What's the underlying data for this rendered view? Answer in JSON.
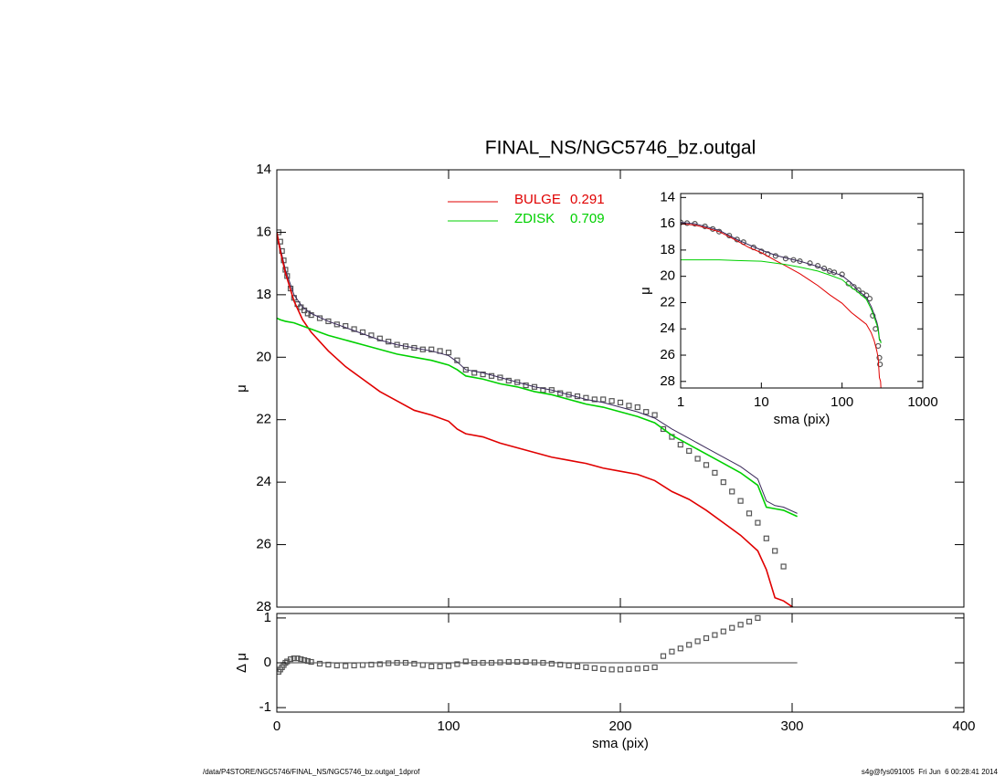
{
  "chart_data": [
    {
      "type": "line",
      "title": "FINAL_NS/NGC5746_bz.outgal",
      "ylabel": "μ",
      "xlim": [
        0,
        400
      ],
      "xticks": [
        0,
        100,
        200,
        300,
        400
      ],
      "xtick_labels": false,
      "ylim": [
        14,
        28
      ],
      "yreverse": true,
      "yticks": [
        14,
        16,
        18,
        20,
        22,
        24,
        26,
        28
      ],
      "legend": "upper-center",
      "series": [
        {
          "mode": "markers",
          "marker": "square",
          "color": "#555555",
          "x": [
            1,
            2,
            3,
            4,
            5,
            6,
            8,
            10,
            12,
            14,
            16,
            18,
            20,
            25,
            30,
            35,
            40,
            45,
            50,
            55,
            60,
            65,
            70,
            75,
            80,
            85,
            90,
            95,
            100,
            105,
            110,
            115,
            120,
            125,
            130,
            135,
            140,
            145,
            150,
            155,
            160,
            165,
            170,
            175,
            180,
            185,
            190,
            195,
            200,
            205,
            210,
            215,
            220,
            225,
            230,
            235,
            240,
            245,
            250,
            255,
            260,
            265,
            270,
            275,
            280,
            285,
            290,
            295
          ],
          "values": [
            16.0,
            16.3,
            16.6,
            16.9,
            17.2,
            17.4,
            17.8,
            18.1,
            18.3,
            18.4,
            18.5,
            18.6,
            18.65,
            18.75,
            18.85,
            18.95,
            19.0,
            19.1,
            19.2,
            19.3,
            19.4,
            19.5,
            19.6,
            19.65,
            19.7,
            19.75,
            19.75,
            19.8,
            19.85,
            20.1,
            20.4,
            20.5,
            20.55,
            20.6,
            20.65,
            20.75,
            20.8,
            20.9,
            20.95,
            21.05,
            21.05,
            21.15,
            21.2,
            21.25,
            21.3,
            21.35,
            21.35,
            21.4,
            21.45,
            21.55,
            21.6,
            21.75,
            21.85,
            22.3,
            22.55,
            22.8,
            23.0,
            23.25,
            23.45,
            23.7,
            24.0,
            24.3,
            24.6,
            25.0,
            25.3,
            25.8,
            26.2,
            26.7
          ]
        },
        {
          "mode": "lines",
          "color": "#3a2a5a",
          "x": [
            0,
            2,
            5,
            10,
            15,
            20,
            30,
            40,
            50,
            60,
            70,
            80,
            90,
            100,
            105,
            110,
            120,
            130,
            140,
            150,
            160,
            170,
            180,
            190,
            200,
            210,
            220,
            230,
            240,
            250,
            260,
            270,
            280,
            285,
            290,
            295,
            303
          ],
          "values": [
            16.0,
            16.5,
            17.2,
            18.0,
            18.4,
            18.6,
            18.85,
            19.05,
            19.25,
            19.45,
            19.6,
            19.7,
            19.8,
            19.95,
            20.15,
            20.4,
            20.5,
            20.65,
            20.8,
            20.95,
            21.05,
            21.2,
            21.35,
            21.45,
            21.6,
            21.75,
            21.95,
            22.3,
            22.6,
            22.9,
            23.2,
            23.5,
            23.9,
            24.6,
            24.75,
            24.8,
            25.0
          ]
        },
        {
          "mode": "lines",
          "name": "BULGE",
          "fraction": 0.291,
          "color": "#e00000",
          "x": [
            0,
            2,
            5,
            10,
            15,
            20,
            30,
            40,
            50,
            60,
            70,
            80,
            90,
            100,
            105,
            110,
            120,
            130,
            140,
            150,
            160,
            170,
            180,
            190,
            200,
            210,
            220,
            230,
            240,
            250,
            260,
            270,
            280,
            285,
            290,
            295,
            303
          ],
          "values": [
            16.0,
            16.6,
            17.3,
            18.2,
            18.8,
            19.2,
            19.8,
            20.3,
            20.7,
            21.1,
            21.4,
            21.7,
            21.85,
            22.05,
            22.3,
            22.45,
            22.55,
            22.75,
            22.9,
            23.05,
            23.2,
            23.3,
            23.4,
            23.55,
            23.65,
            23.75,
            23.95,
            24.3,
            24.55,
            24.9,
            25.3,
            25.7,
            26.2,
            26.8,
            27.7,
            27.8,
            28.1
          ]
        },
        {
          "mode": "lines",
          "name": "ZDISK",
          "fraction": 0.709,
          "color": "#00d000",
          "x": [
            0,
            2,
            5,
            10,
            15,
            20,
            30,
            40,
            50,
            60,
            70,
            80,
            90,
            100,
            105,
            110,
            120,
            130,
            140,
            150,
            160,
            170,
            180,
            190,
            200,
            210,
            220,
            230,
            240,
            250,
            260,
            270,
            280,
            285,
            290,
            295,
            303
          ],
          "values": [
            18.75,
            18.8,
            18.85,
            18.9,
            19.0,
            19.1,
            19.3,
            19.45,
            19.6,
            19.75,
            19.9,
            20.0,
            20.1,
            20.25,
            20.4,
            20.6,
            20.7,
            20.85,
            20.95,
            21.1,
            21.2,
            21.35,
            21.5,
            21.6,
            21.75,
            21.9,
            22.1,
            22.5,
            22.8,
            23.1,
            23.4,
            23.7,
            24.1,
            24.8,
            24.85,
            24.9,
            25.1
          ]
        }
      ]
    },
    {
      "type": "line",
      "xlabel": "sma (pix)",
      "ylabel": "Δ μ",
      "xlim": [
        0,
        400
      ],
      "xticks": [
        0,
        100,
        200,
        300,
        400
      ],
      "ylim": [
        -1.1,
        1.1
      ],
      "yticks": [
        -1,
        0,
        1
      ],
      "hline": 0,
      "hline_x": [
        0,
        303
      ],
      "series": [
        {
          "mode": "markers",
          "marker": "square",
          "color": "#555555",
          "x": [
            1,
            2,
            3,
            4,
            5,
            6,
            8,
            10,
            12,
            14,
            16,
            18,
            20,
            25,
            30,
            35,
            40,
            45,
            50,
            55,
            60,
            65,
            70,
            75,
            80,
            85,
            90,
            95,
            100,
            105,
            110,
            115,
            120,
            125,
            130,
            135,
            140,
            145,
            150,
            155,
            160,
            165,
            170,
            175,
            180,
            185,
            190,
            195,
            200,
            205,
            210,
            215,
            220,
            225,
            230,
            235,
            240,
            245,
            250,
            255,
            260,
            265,
            270,
            275,
            280
          ],
          "values": [
            -0.2,
            -0.15,
            -0.1,
            -0.05,
            0.0,
            0.03,
            0.08,
            0.1,
            0.1,
            0.08,
            0.06,
            0.04,
            0.02,
            -0.02,
            -0.04,
            -0.06,
            -0.07,
            -0.06,
            -0.05,
            -0.04,
            -0.03,
            -0.01,
            0.0,
            0.0,
            -0.02,
            -0.05,
            -0.08,
            -0.08,
            -0.07,
            -0.03,
            0.03,
            0.0,
            0.0,
            0.0,
            0.01,
            0.02,
            0.02,
            0.02,
            0.01,
            0.0,
            -0.02,
            -0.04,
            -0.06,
            -0.08,
            -0.1,
            -0.12,
            -0.14,
            -0.15,
            -0.15,
            -0.14,
            -0.13,
            -0.12,
            -0.1,
            0.15,
            0.25,
            0.32,
            0.4,
            0.48,
            0.55,
            0.62,
            0.7,
            0.78,
            0.85,
            0.92,
            1.0
          ]
        }
      ]
    },
    {
      "type": "line",
      "xlabel": "sma (pix)",
      "ylabel": "μ",
      "xlog": true,
      "xlim": [
        1,
        1000
      ],
      "xticks": [
        1,
        10,
        100,
        1000
      ],
      "ylim": [
        13.7,
        28.5
      ],
      "yreverse": true,
      "yticks": [
        14,
        16,
        18,
        20,
        22,
        24,
        26,
        28
      ],
      "series": [
        {
          "mode": "markers",
          "marker": "circle",
          "color": "#555555",
          "x": [
            1,
            1.2,
            1.5,
            2,
            2.5,
            3,
            4,
            5,
            6,
            8,
            10,
            12,
            15,
            20,
            25,
            30,
            40,
            50,
            60,
            70,
            80,
            100,
            120,
            140,
            160,
            180,
            200,
            220,
            240,
            260,
            280,
            290,
            295
          ],
          "values": [
            15.9,
            15.95,
            16.0,
            16.2,
            16.4,
            16.6,
            16.9,
            17.2,
            17.4,
            17.8,
            18.1,
            18.3,
            18.45,
            18.65,
            18.75,
            18.85,
            19.0,
            19.2,
            19.4,
            19.6,
            19.7,
            19.85,
            20.55,
            20.8,
            21.05,
            21.3,
            21.45,
            21.7,
            23.0,
            24.0,
            25.3,
            26.2,
            26.7
          ]
        },
        {
          "mode": "lines",
          "color": "#3a2a5a",
          "x": [
            1,
            1.5,
            2,
            3,
            5,
            7,
            10,
            15,
            20,
            30,
            50,
            70,
            100,
            130,
            150,
            200,
            230,
            250,
            270,
            280,
            290,
            300,
            303
          ],
          "values": [
            15.9,
            16.0,
            16.2,
            16.5,
            17.2,
            17.6,
            18.0,
            18.4,
            18.6,
            18.85,
            19.25,
            19.6,
            19.95,
            20.5,
            20.95,
            21.6,
            22.3,
            22.9,
            23.5,
            23.9,
            24.75,
            24.9,
            25.0
          ]
        },
        {
          "mode": "lines",
          "color": "#e00000",
          "x": [
            1,
            1.5,
            2,
            3,
            5,
            7,
            10,
            15,
            20,
            30,
            50,
            70,
            100,
            130,
            150,
            200,
            230,
            250,
            270,
            280,
            290,
            300,
            303
          ],
          "values": [
            16.0,
            16.1,
            16.3,
            16.6,
            17.3,
            17.8,
            18.2,
            18.8,
            19.2,
            19.8,
            20.7,
            21.4,
            22.05,
            22.75,
            23.05,
            23.65,
            24.3,
            24.9,
            25.7,
            26.2,
            27.7,
            28.0,
            28.5
          ]
        },
        {
          "mode": "lines",
          "color": "#00d000",
          "x": [
            1,
            1.5,
            2,
            3,
            5,
            7,
            10,
            15,
            20,
            30,
            50,
            70,
            100,
            130,
            150,
            200,
            230,
            250,
            270,
            280,
            290,
            300,
            303
          ],
          "values": [
            18.75,
            18.75,
            18.75,
            18.75,
            18.8,
            18.82,
            18.85,
            19.0,
            19.1,
            19.3,
            19.6,
            19.9,
            20.25,
            20.85,
            21.1,
            21.75,
            22.5,
            23.1,
            23.7,
            24.1,
            24.85,
            24.95,
            25.1
          ]
        }
      ]
    }
  ],
  "footer": {
    "left": "/data/P4STORE/NGC5746/FINAL_NS/NGC5746_bz.outgal_1dprof",
    "right": "s4g@fys091005  Fri Jun  6 00:28:41 2014"
  }
}
